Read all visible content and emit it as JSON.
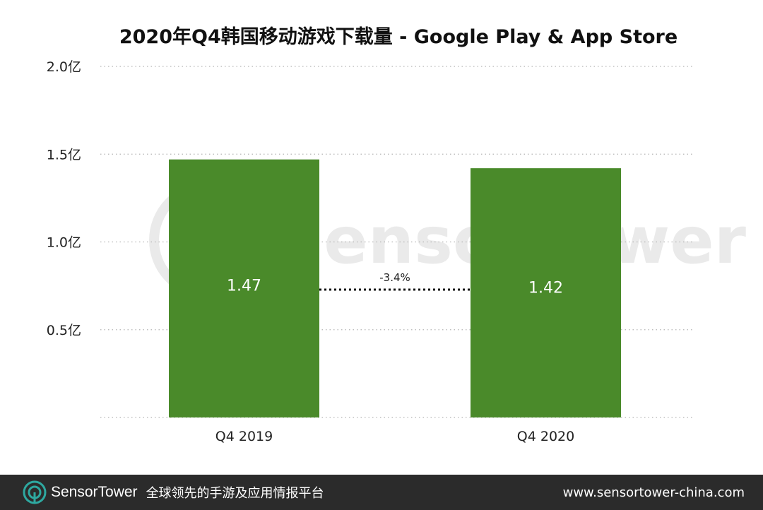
{
  "chart_data": {
    "type": "bar",
    "title": "2020年Q4韩国移动游戏下载量 - Google Play & App Store",
    "categories": [
      "Q4 2019",
      "Q4 2020"
    ],
    "values": [
      1.47,
      1.42
    ],
    "value_labels": [
      "1.47",
      "1.42"
    ],
    "ylim": [
      0,
      2.0
    ],
    "yticks": [
      0.5,
      1.0,
      1.5,
      2.0
    ],
    "ytick_labels": [
      "0.5亿",
      "1.0亿",
      "1.5亿",
      "2.0亿"
    ],
    "change_label": "-3.4%",
    "bar_color": "#4a8a2a",
    "grid": "dotted horizontal",
    "watermark": "SensorTower"
  },
  "footer": {
    "brand": "SensorTower",
    "slogan": "全球领先的手游及应用情报平台",
    "url": "www.sensortower-china.com",
    "logo_icon": "sensortower-logo-icon",
    "accent_color": "#2ea8a0"
  }
}
